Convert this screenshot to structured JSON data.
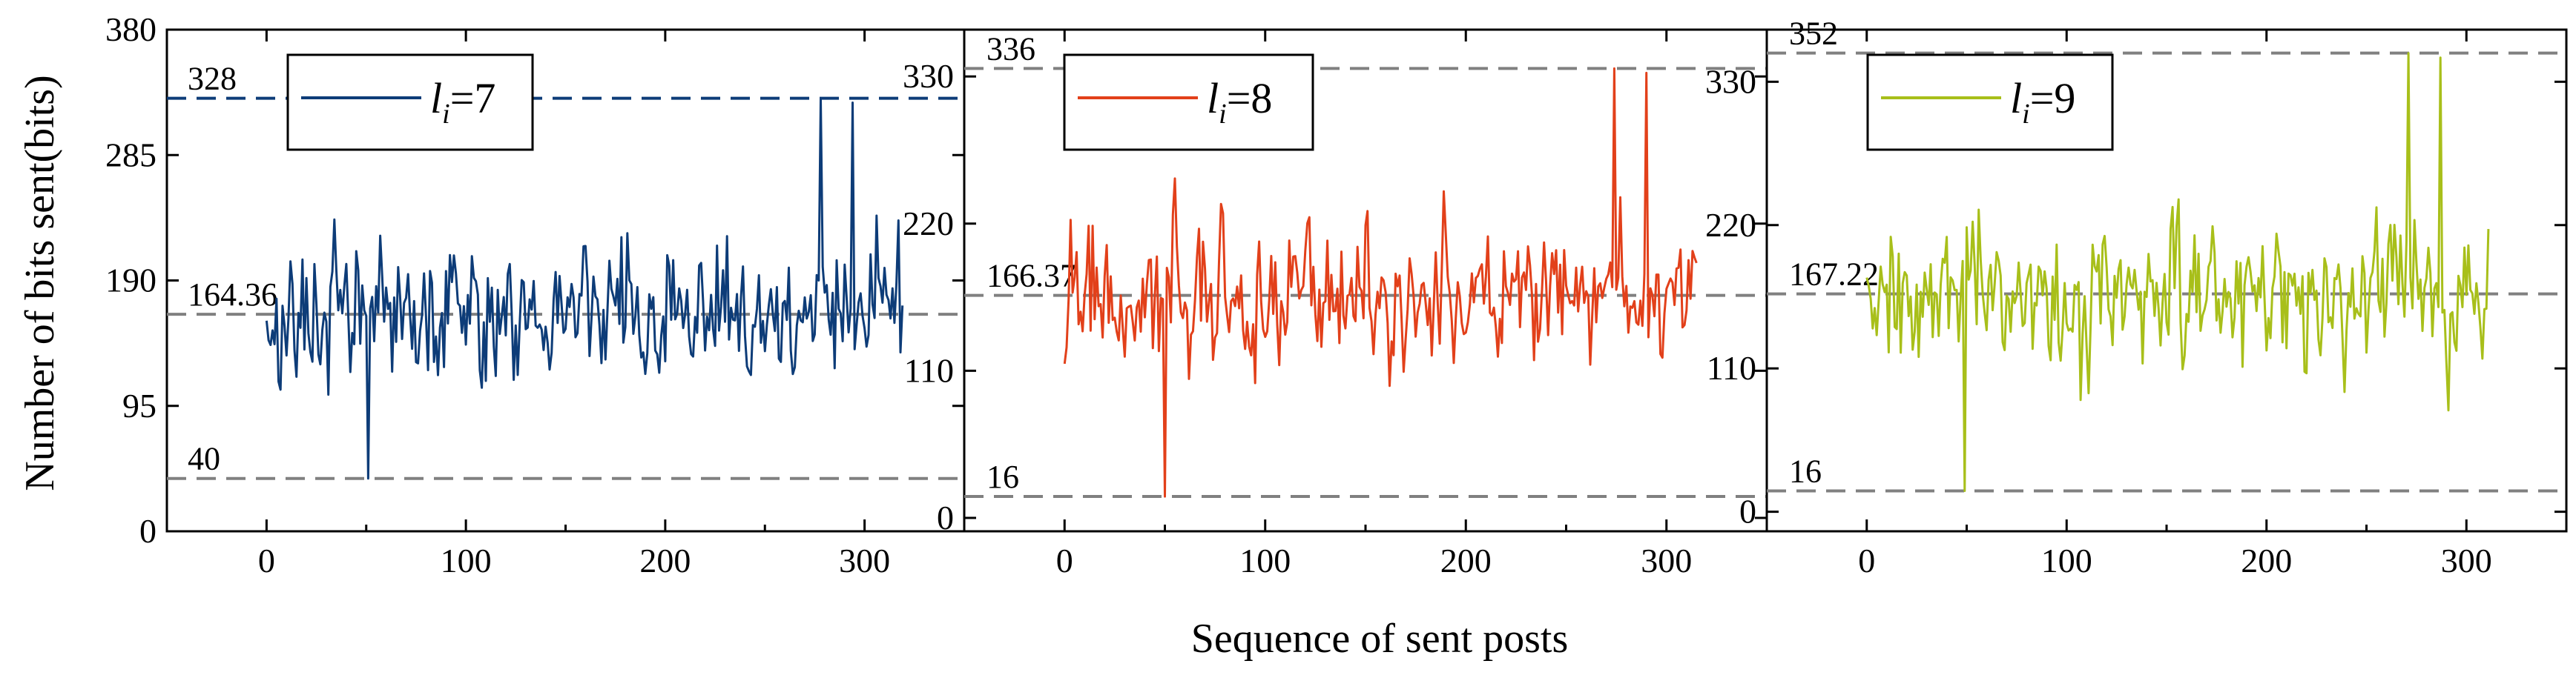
{
  "figure": {
    "ylabel": "Number of bits sent(bits)",
    "xlabel": "Sequence of sent posts"
  },
  "chart_data": [
    {
      "type": "line",
      "legend": {
        "prefix": "l",
        "subscript": "i",
        "value": "=7",
        "placement": "top-left"
      },
      "color": "#0d3c78",
      "x_range": [
        -50,
        350
      ],
      "x_ticks": [
        0,
        100,
        200,
        300
      ],
      "y_range": [
        0,
        380
      ],
      "y_ticks": [
        0,
        95,
        190,
        285,
        380
      ],
      "n_points": 320,
      "series_stats": {
        "min": 40,
        "max": 328,
        "mean": 164.36
      },
      "reference_lines": [
        {
          "value": 328,
          "label": "328",
          "color": "#0d3c78"
        },
        {
          "value": 164.36,
          "label": "164.36",
          "color": "#808080"
        },
        {
          "value": 40,
          "label": "40",
          "color": "#808080"
        }
      ]
    },
    {
      "type": "line",
      "legend": {
        "prefix": "l",
        "subscript": "i",
        "value": "=8",
        "placement": "top-left"
      },
      "color": "#e2401a",
      "x_range": [
        -50,
        350
      ],
      "x_ticks": [
        0,
        100,
        200,
        300
      ],
      "y_range": [
        -10,
        365
      ],
      "y_ticks": [
        0,
        110,
        220,
        330
      ],
      "n_points": 316,
      "series_stats": {
        "min": 16,
        "max": 336,
        "mean": 166.37
      },
      "reference_lines": [
        {
          "value": 336,
          "label": "336",
          "color": "#808080"
        },
        {
          "value": 166.37,
          "label": "166.37",
          "color": "#808080"
        },
        {
          "value": 16,
          "label": "16",
          "color": "#808080"
        }
      ]
    },
    {
      "type": "line",
      "legend": {
        "prefix": "l",
        "subscript": "i",
        "value": "=9",
        "placement": "top-left"
      },
      "color": "#a8bf1a",
      "x_range": [
        -50,
        350
      ],
      "x_ticks": [
        0,
        100,
        200,
        300
      ],
      "y_range": [
        -15,
        370
      ],
      "y_ticks": [
        0,
        110,
        220,
        330
      ],
      "n_points": 312,
      "series_stats": {
        "min": 16,
        "max": 352,
        "mean": 167.22
      },
      "reference_lines": [
        {
          "value": 352,
          "label": "352",
          "color": "#808080"
        },
        {
          "value": 167.22,
          "label": "167.22",
          "color": "#808080"
        },
        {
          "value": 16,
          "label": "16",
          "color": "#808080"
        }
      ]
    }
  ]
}
